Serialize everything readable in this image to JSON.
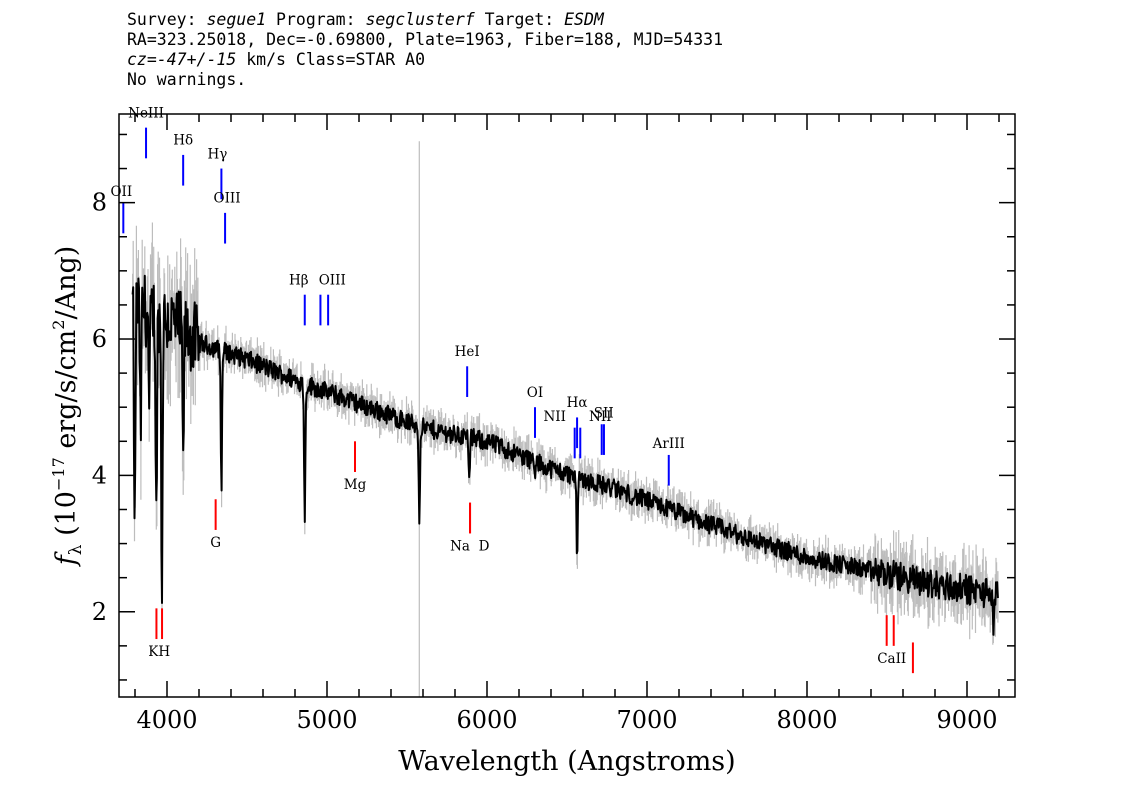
{
  "header": {
    "line1": {
      "survey_label": "Survey: ",
      "survey": "segue1",
      "program_label": " Program: ",
      "program": "segclusterf",
      "target_label": " Target: ",
      "target": "ESDM"
    },
    "line2": "RA=323.25018, Dec=-0.69800, Plate=1963, Fiber=188, MJD=54331",
    "line3": {
      "cz": "cz=-47+/-15",
      "rest": " km/s Class=STAR A0"
    },
    "line4": "No warnings."
  },
  "chart_data": {
    "type": "line",
    "xlabel": "Wavelength (Angstroms)",
    "ylabel": "f_λ (10^-17 erg/s/cm^2/Ang)",
    "ylabel_parts": {
      "f": "f",
      "lambda_sub": "λ",
      "open": " (10",
      "exp1": "−17",
      "mid": " erg/s/cm",
      "exp2": "2",
      "close": "/Ang)"
    },
    "xlim": [
      3700,
      9300
    ],
    "ylim": [
      0.75,
      9.3
    ],
    "x_ticks": [
      4000,
      5000,
      6000,
      7000,
      8000,
      9000
    ],
    "x_tick_labels": [
      "4000",
      "5000",
      "6000",
      "7000",
      "8000",
      "9000"
    ],
    "y_ticks": [
      2,
      4,
      6,
      8
    ],
    "y_tick_labels": [
      "2",
      "4",
      "6",
      "8"
    ],
    "x_minor_step": 200,
    "y_minor_step": 0.5,
    "colors": {
      "data": "#000000",
      "error": "#bdbdbd",
      "emission": "#0000ff",
      "absorption": "#ff0000"
    },
    "continuum_points": [
      {
        "x": 3800,
        "y": 6.5
      },
      {
        "x": 4000,
        "y": 6.3
      },
      {
        "x": 4200,
        "y": 5.95
      },
      {
        "x": 4500,
        "y": 5.7
      },
      {
        "x": 4800,
        "y": 5.4
      },
      {
        "x": 5200,
        "y": 5.05
      },
      {
        "x": 5600,
        "y": 4.7
      },
      {
        "x": 6000,
        "y": 4.5
      },
      {
        "x": 6400,
        "y": 4.1
      },
      {
        "x": 6800,
        "y": 3.8
      },
      {
        "x": 7200,
        "y": 3.45
      },
      {
        "x": 7600,
        "y": 3.1
      },
      {
        "x": 8000,
        "y": 2.8
      },
      {
        "x": 8400,
        "y": 2.6
      },
      {
        "x": 8800,
        "y": 2.4
      },
      {
        "x": 9200,
        "y": 2.25
      }
    ],
    "absorption_features": [
      {
        "x": 3798,
        "y": 2.9
      },
      {
        "x": 3835,
        "y": 4.6
      },
      {
        "x": 3889,
        "y": 4.8
      },
      {
        "x": 3933,
        "y": 3.3
      },
      {
        "x": 3968,
        "y": 2.2
      },
      {
        "x": 4101,
        "y": 4.1
      },
      {
        "x": 4340,
        "y": 3.85
      },
      {
        "x": 4861,
        "y": 3.4
      },
      {
        "x": 5577,
        "y": 3.4
      },
      {
        "x": 5890,
        "y": 3.9
      },
      {
        "x": 6300,
        "y": 3.95
      },
      {
        "x": 6563,
        "y": 2.85
      },
      {
        "x": 9165,
        "y": 1.75
      }
    ],
    "emission_lines": [
      {
        "label": "OII",
        "x": 3727,
        "y_bottom": 7.55,
        "y_top": 8.0,
        "label_y": 8.1
      },
      {
        "label": "NeIII",
        "x": 3869,
        "y_bottom": 8.65,
        "y_top": 9.1,
        "label_y": 9.25
      },
      {
        "label": "Hδ",
        "x": 4101,
        "y_bottom": 8.25,
        "y_top": 8.7,
        "label_y": 8.85
      },
      {
        "label": "Hγ",
        "x": 4340,
        "y_bottom": 8.05,
        "y_top": 8.5,
        "label_y": 8.65
      },
      {
        "label": "OIII",
        "x": 4363,
        "y_bottom": 7.4,
        "y_top": 7.85,
        "label_y": 8.0
      },
      {
        "label": "Hβ",
        "x": 4861,
        "y_bottom": 6.2,
        "y_top": 6.65,
        "label_y": 6.8
      },
      {
        "label": "OIII",
        "x": 4959,
        "y_bottom": 6.2,
        "y_top": 6.65,
        "label_y": 6.8
      },
      {
        "label": "OIII",
        "x": 5007,
        "y_bottom": 6.2,
        "y_top": 6.65,
        "label_y": 6.8
      },
      {
        "label": "HeI",
        "x": 5876,
        "y_bottom": 5.15,
        "y_top": 5.6,
        "label_y": 5.75
      },
      {
        "label": "OI",
        "x": 6300,
        "y_bottom": 4.55,
        "y_top": 5.0,
        "label_y": 5.15
      },
      {
        "label": "NII",
        "x": 6548,
        "y_bottom": 4.25,
        "y_top": 4.7,
        "label_y": 4.8
      },
      {
        "label": "Hα",
        "x": 6563,
        "y_bottom": 4.4,
        "y_top": 4.85,
        "label_y": 5.0
      },
      {
        "label": "NII",
        "x": 6583,
        "y_bottom": 4.25,
        "y_top": 4.7,
        "label_y": 4.8
      },
      {
        "label": "SII",
        "x": 6717,
        "y_bottom": 4.3,
        "y_top": 4.75,
        "label_y": 4.85
      },
      {
        "label": "SII",
        "x": 6731,
        "y_bottom": 4.3,
        "y_top": 4.75,
        "label_y": 4.85
      },
      {
        "label": "ArIII",
        "x": 7136,
        "y_bottom": 3.85,
        "y_top": 4.3,
        "label_y": 4.4
      }
    ],
    "absorption_lines": [
      {
        "label": "K",
        "x": 3934,
        "y_bottom": 1.6,
        "y_top": 2.05,
        "label_y": 1.35
      },
      {
        "label": "H",
        "x": 3969,
        "y_bottom": 1.6,
        "y_top": 2.05,
        "label_y": 1.35
      },
      {
        "label": "G",
        "x": 4304,
        "y_bottom": 3.2,
        "y_top": 3.65,
        "label_y": 2.95
      },
      {
        "label": "Mg",
        "x": 5175,
        "y_bottom": 4.05,
        "y_top": 4.5,
        "label_y": 3.8
      },
      {
        "label": "Na",
        "x": 5894,
        "y_bottom": 3.15,
        "y_top": 3.6,
        "label_y": 2.9
      },
      {
        "label": "D",
        "x": 5894,
        "y_bottom": 3.15,
        "y_top": 3.6,
        "label_y": 2.9
      },
      {
        "label": "CaII",
        "x": 8498,
        "y_bottom": 1.5,
        "y_top": 1.95,
        "label_y": 1.25
      },
      {
        "label": "CaII",
        "x": 8542,
        "y_bottom": 1.5,
        "y_top": 1.95,
        "label_y": 1.25
      },
      {
        "label": "CaII",
        "x": 8662,
        "y_bottom": 1.1,
        "y_top": 1.55,
        "label_y": 1.25
      }
    ]
  }
}
